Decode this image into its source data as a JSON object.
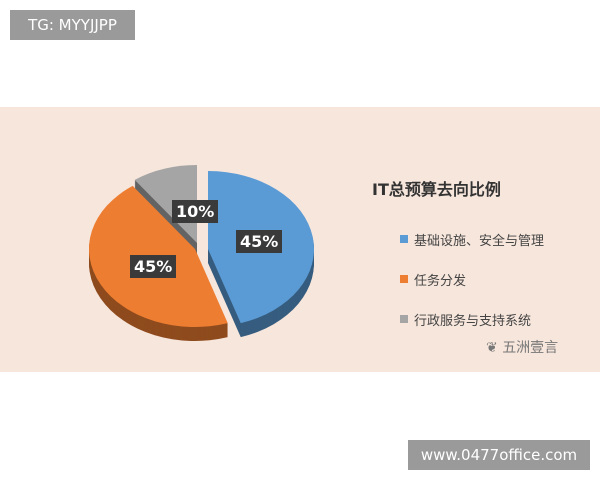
{
  "overlay_top_left": "TG: MYYJJPP",
  "overlay_bottom_right": "www.0477office.com",
  "watermark": "五洲壹言",
  "chart_data": {
    "type": "pie",
    "title": "IT总预算去向比例",
    "legend_position": "right",
    "categories": [
      "基础设施、安全与管理",
      "任务分发",
      "行政服务与支持系统"
    ],
    "values": [
      45,
      45,
      10
    ],
    "data_labels": [
      "45%",
      "45%",
      "10%"
    ],
    "colors": [
      "#5b9bd5",
      "#ed7d31",
      "#a5a5a5"
    ]
  }
}
